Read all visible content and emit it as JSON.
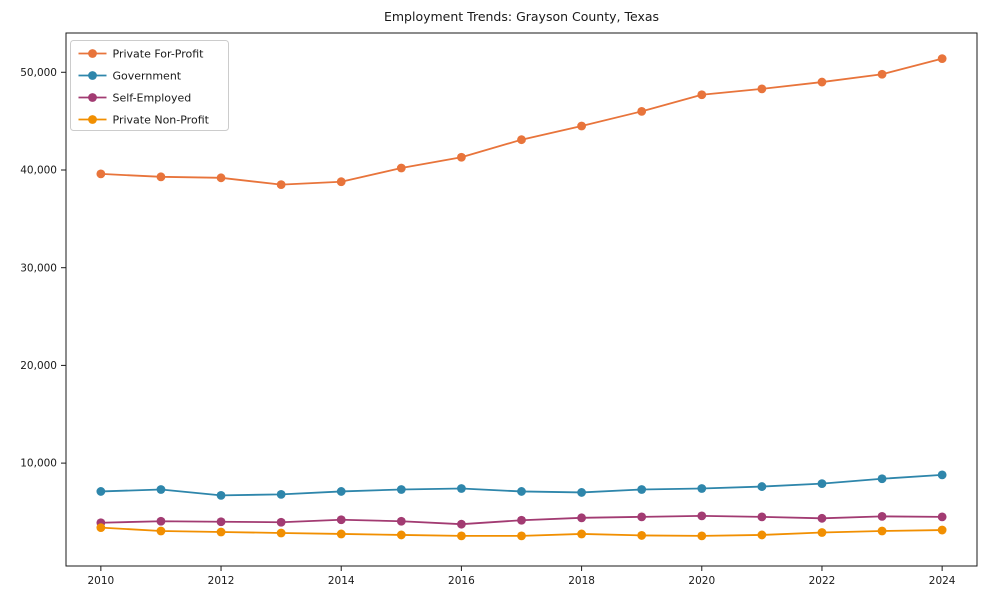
{
  "chart": {
    "title": "Employment Trends: Grayson County, Texas"
  },
  "chart_data": {
    "type": "line",
    "title": "Employment Trends: Grayson County, Texas",
    "xlabel": "",
    "ylabel": "",
    "x": [
      2010,
      2011,
      2012,
      2013,
      2014,
      2015,
      2016,
      2017,
      2018,
      2019,
      2020,
      2021,
      2022,
      2023,
      2024
    ],
    "series": [
      {
        "name": "Private For-Profit",
        "color": "#e8743b",
        "values": [
          39600,
          39300,
          39200,
          38500,
          38800,
          40200,
          41300,
          43100,
          44500,
          46000,
          47700,
          48300,
          49000,
          49800,
          51400
        ]
      },
      {
        "name": "Government",
        "color": "#2e86ab",
        "values": [
          7100,
          7300,
          6700,
          6800,
          7100,
          7300,
          7400,
          7100,
          7000,
          7300,
          7400,
          7600,
          7900,
          8400,
          8800
        ]
      },
      {
        "name": "Self-Employed",
        "color": "#a23b72",
        "values": [
          3900,
          4050,
          4000,
          3950,
          4200,
          4050,
          3750,
          4150,
          4400,
          4500,
          4600,
          4500,
          4350,
          4550,
          4500
        ]
      },
      {
        "name": "Private Non-Profit",
        "color": "#f18f01",
        "values": [
          3400,
          3050,
          2950,
          2850,
          2750,
          2650,
          2550,
          2550,
          2750,
          2600,
          2550,
          2650,
          2900,
          3050,
          3150
        ]
      }
    ],
    "xticks": [
      2010,
      2012,
      2014,
      2016,
      2018,
      2020,
      2022,
      2024
    ],
    "xtick_labels": [
      "2010",
      "2012",
      "2014",
      "2016",
      "2018",
      "2020",
      "2022",
      "2024"
    ],
    "yticks": [
      10000,
      20000,
      30000,
      40000,
      50000
    ],
    "ytick_labels": [
      "10,000",
      "20,000",
      "30,000",
      "40,000",
      "50,000"
    ],
    "xlim": [
      2009.42,
      2024.58
    ],
    "ylim": [
      -530,
      54020
    ],
    "grid": false,
    "legend_position": "upper left",
    "axis_color": "#1a1a1a"
  }
}
